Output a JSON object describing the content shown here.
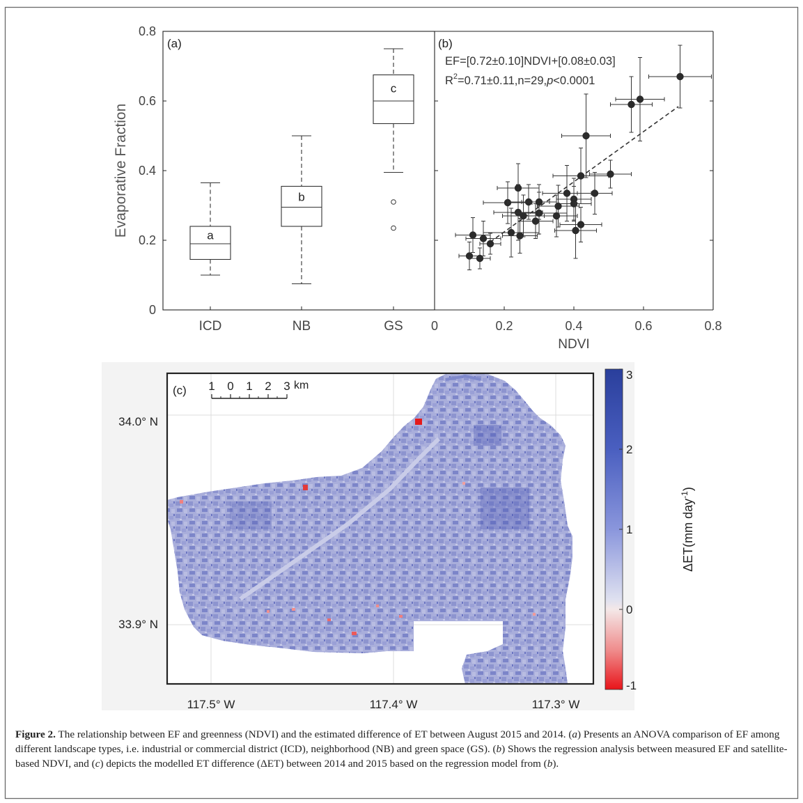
{
  "panel_a": {
    "label": "(a)",
    "ylabel": "Evaporative Fraction",
    "yticks": [
      "0",
      "0.2",
      "0.4",
      "0.6",
      "0.8"
    ],
    "categories": [
      "ICD",
      "NB",
      "GS"
    ],
    "letters": [
      "a",
      "b",
      "c"
    ]
  },
  "panel_b": {
    "label": "(b)",
    "xlabel": "NDVI",
    "xticks": [
      "0",
      "0.2",
      "0.4",
      "0.6",
      "0.8"
    ],
    "eq_line1": "EF=[0.72±0.10]NDVI+[0.08±0.03]",
    "eq_r": "R",
    "eq_sup": "2",
    "eq_rest": "=0.71±0.11,n=29,",
    "eq_p": "p",
    "eq_end": "<0.0001"
  },
  "panel_c": {
    "label": "(c)",
    "scale_numbers": [
      "1",
      "0",
      "1",
      "2",
      "3"
    ],
    "scale_unit": "km",
    "lat_labels": [
      "34.0° N",
      "33.9° N"
    ],
    "lon_labels": [
      "117.5° W",
      "117.4° W",
      "117.3° W"
    ],
    "colorbar_ticks": [
      "3",
      "2",
      "1",
      "0",
      "-1"
    ],
    "colorbar_label_main": "ΔET(mm day",
    "colorbar_label_sup": "-1",
    "colorbar_label_end": ")"
  },
  "chart_data": [
    {
      "type": "box",
      "categories": [
        "ICD",
        "NB",
        "GS"
      ],
      "ylabel": "Evaporative Fraction",
      "ylim": [
        0,
        0.8
      ],
      "boxes": [
        {
          "category": "ICD",
          "whisker_low": 0.1,
          "q1": 0.145,
          "median": 0.19,
          "q3": 0.24,
          "whisker_high": 0.365,
          "outliers": [],
          "letter": "a"
        },
        {
          "category": "NB",
          "whisker_low": 0.075,
          "q1": 0.24,
          "median": 0.295,
          "q3": 0.355,
          "whisker_high": 0.5,
          "outliers": [],
          "letter": "b"
        },
        {
          "category": "GS",
          "whisker_low": 0.395,
          "q1": 0.535,
          "median": 0.6,
          "q3": 0.675,
          "whisker_high": 0.75,
          "outliers": [
            0.31,
            0.235
          ],
          "letter": "c"
        }
      ]
    },
    {
      "type": "scatter",
      "xlabel": "NDVI",
      "ylabel": "Evaporative Fraction",
      "xlim": [
        0,
        0.8
      ],
      "ylim": [
        0,
        0.8
      ],
      "fit": {
        "slope": 0.72,
        "intercept": 0.08,
        "x_range": [
          0.16,
          0.7
        ]
      },
      "points": [
        {
          "x": 0.1,
          "y": 0.155,
          "xerr": 0.03,
          "yerr": 0.04
        },
        {
          "x": 0.11,
          "y": 0.215,
          "xerr": 0.05,
          "yerr": 0.05
        },
        {
          "x": 0.13,
          "y": 0.148,
          "xerr": 0.03,
          "yerr": 0.03
        },
        {
          "x": 0.14,
          "y": 0.205,
          "xerr": 0.05,
          "yerr": 0.05
        },
        {
          "x": 0.16,
          "y": 0.19,
          "xerr": 0.03,
          "yerr": 0.03
        },
        {
          "x": 0.21,
          "y": 0.308,
          "xerr": 0.07,
          "yerr": 0.06
        },
        {
          "x": 0.22,
          "y": 0.222,
          "xerr": 0.08,
          "yerr": 0.07
        },
        {
          "x": 0.24,
          "y": 0.35,
          "xerr": 0.06,
          "yerr": 0.07
        },
        {
          "x": 0.24,
          "y": 0.28,
          "xerr": 0.07,
          "yerr": 0.08
        },
        {
          "x": 0.245,
          "y": 0.213,
          "xerr": 0.05,
          "yerr": 0.05
        },
        {
          "x": 0.255,
          "y": 0.27,
          "xerr": 0.06,
          "yerr": 0.06
        },
        {
          "x": 0.27,
          "y": 0.31,
          "xerr": 0.06,
          "yerr": 0.05
        },
        {
          "x": 0.29,
          "y": 0.255,
          "xerr": 0.05,
          "yerr": 0.05
        },
        {
          "x": 0.3,
          "y": 0.278,
          "xerr": 0.08,
          "yerr": 0.06
        },
        {
          "x": 0.3,
          "y": 0.31,
          "xerr": 0.05,
          "yerr": 0.05
        },
        {
          "x": 0.35,
          "y": 0.27,
          "xerr": 0.06,
          "yerr": 0.06
        },
        {
          "x": 0.355,
          "y": 0.298,
          "xerr": 0.06,
          "yerr": 0.06
        },
        {
          "x": 0.38,
          "y": 0.335,
          "xerr": 0.07,
          "yerr": 0.08
        },
        {
          "x": 0.4,
          "y": 0.318,
          "xerr": 0.05,
          "yerr": 0.06
        },
        {
          "x": 0.4,
          "y": 0.305,
          "xerr": 0.05,
          "yerr": 0.05
        },
        {
          "x": 0.405,
          "y": 0.228,
          "xerr": 0.06,
          "yerr": 0.08
        },
        {
          "x": 0.42,
          "y": 0.245,
          "xerr": 0.06,
          "yerr": 0.05
        },
        {
          "x": 0.42,
          "y": 0.385,
          "xerr": 0.08,
          "yerr": 0.08
        },
        {
          "x": 0.435,
          "y": 0.5,
          "xerr": 0.07,
          "yerr": 0.12
        },
        {
          "x": 0.46,
          "y": 0.335,
          "xerr": 0.05,
          "yerr": 0.06
        },
        {
          "x": 0.505,
          "y": 0.39,
          "xerr": 0.06,
          "yerr": 0.04
        },
        {
          "x": 0.565,
          "y": 0.59,
          "xerr": 0.06,
          "yerr": 0.08
        },
        {
          "x": 0.59,
          "y": 0.605,
          "xerr": 0.07,
          "yerr": 0.12
        },
        {
          "x": 0.705,
          "y": 0.67,
          "xerr": 0.09,
          "yerr": 0.09
        }
      ]
    },
    {
      "type": "heatmap",
      "colorbar_range": [
        -1,
        3
      ],
      "colorbar_label": "ΔET(mm day-1)"
    }
  ],
  "caption": {
    "fig_label": "Figure 2.",
    "text1": " The relationship between EF and greenness (NDVI) and the estimated difference of ET between August 2015 and 2014. (",
    "a1": "a",
    "text2": ") Presents an ANOVA comparison of EF among different landscape types, i.e. industrial or commercial district (ICD), neighborhood (NB) and green space (GS). (",
    "b1": "b",
    "text3": ") Shows the regression analysis between measured EF and satellite-based NDVI, and (",
    "c1": "c",
    "text4": ") depicts the modelled ET difference (ΔET) between 2014 and 2015 based on the regression model from (",
    "b2": "b",
    "text5": ")."
  }
}
